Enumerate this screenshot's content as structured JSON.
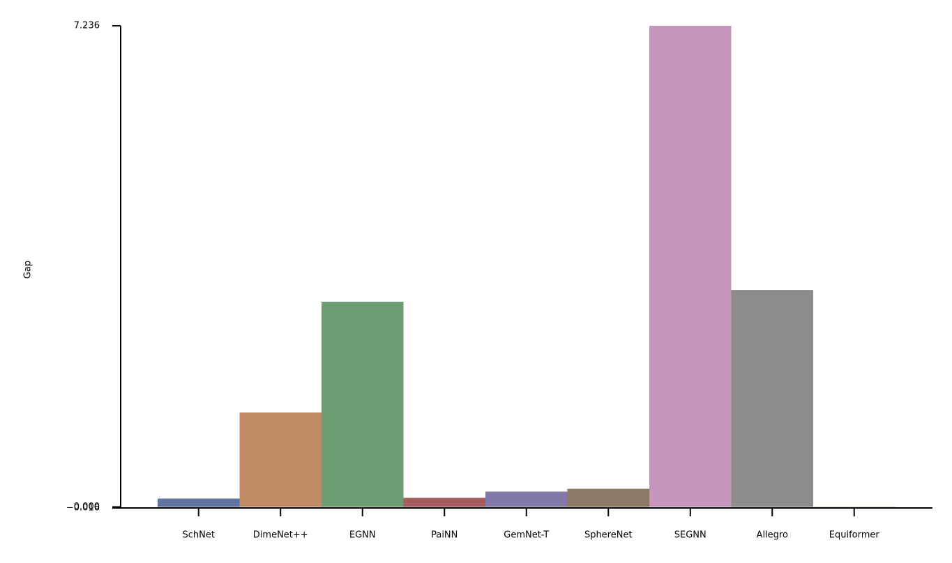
{
  "chart_data": {
    "type": "bar",
    "y_label": "Gap",
    "categories": [
      "SchNet",
      "DimeNet++",
      "EGNN",
      "PaiNN",
      "GemNet-T",
      "SphereNet",
      "SEGNN",
      "Allegro",
      "Equiformer"
    ],
    "values": [
      0.125,
      1.42,
      3.085,
      0.136,
      0.23,
      0.272,
      7.236,
      3.263,
      -0.016
    ],
    "colors": [
      "#5f74a0",
      "#c18b66",
      "#6c9c71",
      "#a65d5d",
      "#8279a8",
      "#8c7a66",
      "#c796bd",
      "#8c8c8c",
      "#ccb974"
    ],
    "ylim": [
      -0.016,
      7.236
    ],
    "yticks": [
      {
        "value": -0.016,
        "label": "−0.016"
      },
      {
        "value": 0.0,
        "label": "0.000"
      },
      7.236
    ]
  }
}
